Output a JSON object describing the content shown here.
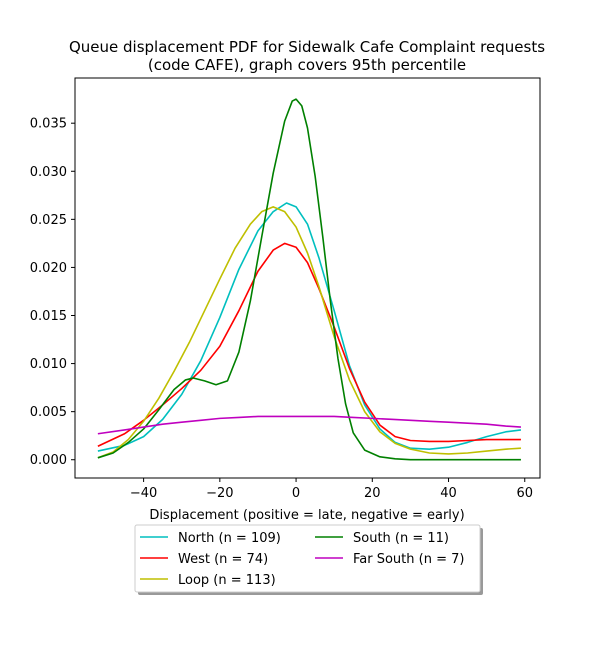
{
  "chart_data": {
    "type": "line",
    "title_line1": "Queue displacement PDF for Sidewalk Cafe Complaint  requests",
    "title_line2": "(code CAFE), graph covers 95th percentile",
    "xlabel": "Displacement (positive = late, negative = early)",
    "ylabel": "",
    "xlim": [
      -58,
      64
    ],
    "ylim": [
      -0.0019,
      0.0397
    ],
    "xticks": [
      -40,
      -20,
      0,
      20,
      40,
      60
    ],
    "xtick_labels": [
      "−40",
      "−20",
      "0",
      "20",
      "40",
      "60"
    ],
    "yticks": [
      0.0,
      0.005,
      0.01,
      0.015,
      0.02,
      0.025,
      0.03,
      0.035
    ],
    "ytick_labels": [
      "0.000",
      "0.005",
      "0.010",
      "0.015",
      "0.020",
      "0.025",
      "0.030",
      "0.035"
    ],
    "grid": false,
    "legend_position": "below-center",
    "series": [
      {
        "name": "North (n = 109)",
        "color": "#00bfbf",
        "points": [
          [
            -52,
            0.0009
          ],
          [
            -45,
            0.0015
          ],
          [
            -40,
            0.0024
          ],
          [
            -35,
            0.0042
          ],
          [
            -30,
            0.0068
          ],
          [
            -25,
            0.0103
          ],
          [
            -20,
            0.0148
          ],
          [
            -15,
            0.0198
          ],
          [
            -10,
            0.0238
          ],
          [
            -6,
            0.0258
          ],
          [
            -2.5,
            0.0267
          ],
          [
            0,
            0.0263
          ],
          [
            3,
            0.0245
          ],
          [
            6,
            0.021
          ],
          [
            10,
            0.0155
          ],
          [
            14,
            0.0098
          ],
          [
            18,
            0.0057
          ],
          [
            22,
            0.0032
          ],
          [
            26,
            0.0018
          ],
          [
            30,
            0.0012
          ],
          [
            35,
            0.0011
          ],
          [
            40,
            0.0013
          ],
          [
            45,
            0.0018
          ],
          [
            50,
            0.0024
          ],
          [
            55,
            0.0029
          ],
          [
            59,
            0.0031
          ]
        ]
      },
      {
        "name": "West (n = 74)",
        "color": "#ff0000",
        "points": [
          [
            -52,
            0.0014
          ],
          [
            -45,
            0.0027
          ],
          [
            -40,
            0.0041
          ],
          [
            -35,
            0.0057
          ],
          [
            -30,
            0.0074
          ],
          [
            -25,
            0.0093
          ],
          [
            -20,
            0.0118
          ],
          [
            -15,
            0.0155
          ],
          [
            -10,
            0.0196
          ],
          [
            -6,
            0.0218
          ],
          [
            -3,
            0.0225
          ],
          [
            0,
            0.0221
          ],
          [
            3,
            0.0205
          ],
          [
            6,
            0.0178
          ],
          [
            10,
            0.0138
          ],
          [
            14,
            0.0095
          ],
          [
            18,
            0.006
          ],
          [
            22,
            0.0036
          ],
          [
            26,
            0.0024
          ],
          [
            30,
            0.002
          ],
          [
            35,
            0.0019
          ],
          [
            40,
            0.0019
          ],
          [
            45,
            0.002
          ],
          [
            50,
            0.0021
          ],
          [
            55,
            0.0021
          ],
          [
            59,
            0.0021
          ]
        ]
      },
      {
        "name": "Loop (n = 113)",
        "color": "#bfbf00",
        "points": [
          [
            -52,
            0.0002
          ],
          [
            -48,
            0.0008
          ],
          [
            -44,
            0.0021
          ],
          [
            -40,
            0.004
          ],
          [
            -36,
            0.0064
          ],
          [
            -32,
            0.0092
          ],
          [
            -28,
            0.0122
          ],
          [
            -24,
            0.0155
          ],
          [
            -20,
            0.0188
          ],
          [
            -16,
            0.022
          ],
          [
            -12,
            0.0245
          ],
          [
            -9,
            0.0258
          ],
          [
            -6,
            0.0263
          ],
          [
            -3,
            0.0258
          ],
          [
            0,
            0.0242
          ],
          [
            3,
            0.0215
          ],
          [
            6,
            0.018
          ],
          [
            10,
            0.0128
          ],
          [
            14,
            0.0083
          ],
          [
            18,
            0.005
          ],
          [
            22,
            0.0029
          ],
          [
            26,
            0.0017
          ],
          [
            30,
            0.0011
          ],
          [
            35,
            0.0007
          ],
          [
            40,
            0.0006
          ],
          [
            45,
            0.0007
          ],
          [
            50,
            0.0009
          ],
          [
            55,
            0.0011
          ],
          [
            59,
            0.0012
          ]
        ]
      },
      {
        "name": "South (n = 11)",
        "color": "#008000",
        "points": [
          [
            -52,
            0.0002
          ],
          [
            -48,
            0.0007
          ],
          [
            -44,
            0.0018
          ],
          [
            -40,
            0.0032
          ],
          [
            -36,
            0.0052
          ],
          [
            -32,
            0.0073
          ],
          [
            -29,
            0.0083
          ],
          [
            -27,
            0.0085
          ],
          [
            -24,
            0.0082
          ],
          [
            -21,
            0.0078
          ],
          [
            -18,
            0.0082
          ],
          [
            -15,
            0.0112
          ],
          [
            -12,
            0.0165
          ],
          [
            -9,
            0.0232
          ],
          [
            -6,
            0.0298
          ],
          [
            -3,
            0.0352
          ],
          [
            -1,
            0.0373
          ],
          [
            0,
            0.0375
          ],
          [
            1.5,
            0.0368
          ],
          [
            3,
            0.0345
          ],
          [
            5,
            0.0295
          ],
          [
            7,
            0.0232
          ],
          [
            9,
            0.0165
          ],
          [
            11,
            0.0105
          ],
          [
            13,
            0.0058
          ],
          [
            15,
            0.0028
          ],
          [
            18,
            0.001
          ],
          [
            22,
            0.0003
          ],
          [
            26,
            0.0001
          ],
          [
            30,
            0.0
          ],
          [
            40,
            0.0
          ],
          [
            50,
            0.0
          ],
          [
            59,
            0.0
          ]
        ]
      },
      {
        "name": "Far South (n = 7)",
        "color": "#bf00bf",
        "points": [
          [
            -52,
            0.0027
          ],
          [
            -45,
            0.0031
          ],
          [
            -40,
            0.0034
          ],
          [
            -35,
            0.0037
          ],
          [
            -30,
            0.0039
          ],
          [
            -25,
            0.0041
          ],
          [
            -20,
            0.0043
          ],
          [
            -15,
            0.0044
          ],
          [
            -10,
            0.0045
          ],
          [
            -5,
            0.0045
          ],
          [
            0,
            0.0045
          ],
          [
            5,
            0.0045
          ],
          [
            10,
            0.0045
          ],
          [
            15,
            0.0044
          ],
          [
            20,
            0.0043
          ],
          [
            25,
            0.0042
          ],
          [
            30,
            0.0041
          ],
          [
            35,
            0.004
          ],
          [
            40,
            0.0039
          ],
          [
            45,
            0.0038
          ],
          [
            50,
            0.0037
          ],
          [
            55,
            0.0035
          ],
          [
            59,
            0.0034
          ]
        ]
      }
    ]
  }
}
